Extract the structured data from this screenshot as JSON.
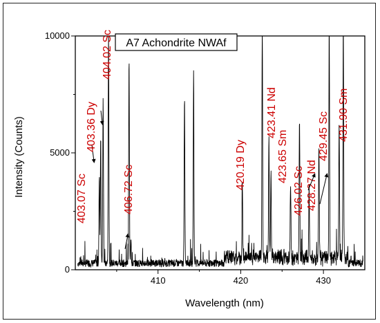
{
  "chart_data": {
    "type": "line",
    "title": "A7 Achondrite NWAf",
    "xlabel": "Wavelength (nm)",
    "ylabel": "Intensity (Counts)",
    "xlim": [
      400,
      435
    ],
    "ylim": [
      0,
      10000
    ],
    "xticks": [
      410,
      420,
      430
    ],
    "yticks": [
      0,
      5000,
      10000
    ],
    "colors": {
      "spectrum": "#000000",
      "annotation": "#cc0000"
    },
    "peaks": [
      {
        "x": 402.9,
        "y": 3700
      },
      {
        "x": 403.07,
        "y": 5400
      },
      {
        "x": 403.36,
        "y": 7000
      },
      {
        "x": 404.02,
        "y": 10000
      },
      {
        "x": 406.5,
        "y": 8700
      },
      {
        "x": 406.72,
        "y": 1100
      },
      {
        "x": 413.2,
        "y": 7000
      },
      {
        "x": 414.3,
        "y": 8200
      },
      {
        "x": 420.19,
        "y": 3300
      },
      {
        "x": 422.6,
        "y": 10000
      },
      {
        "x": 423.41,
        "y": 5300
      },
      {
        "x": 423.65,
        "y": 3600
      },
      {
        "x": 426.02,
        "y": 3200
      },
      {
        "x": 427.1,
        "y": 6000
      },
      {
        "x": 428.27,
        "y": 3000
      },
      {
        "x": 429.45,
        "y": 4500
      },
      {
        "x": 430.7,
        "y": 10000
      },
      {
        "x": 431.9,
        "y": 5600
      },
      {
        "x": 432.4,
        "y": 10000
      }
    ],
    "annotations": [
      {
        "text": "403.07 Sc",
        "x": 403.07,
        "y": 5100
      },
      {
        "text": "403.36 Dy",
        "x": 403.36,
        "y": 7000
      },
      {
        "text": "404.02 Sc",
        "x": 404.02,
        "y": 10000
      },
      {
        "text": "406.72 Sc",
        "x": 406.72,
        "y": 1000
      },
      {
        "text": "420.19 Dy",
        "x": 420.19,
        "y": 3300
      },
      {
        "text": "423.41 Nd",
        "x": 423.41,
        "y": 5300
      },
      {
        "text": "423.65 Sm",
        "x": 423.65,
        "y": 3600
      },
      {
        "text": "426.02 Sc",
        "x": 426.02,
        "y": 3200
      },
      {
        "text": "428.27 Nd",
        "x": 428.27,
        "y": 3000
      },
      {
        "text": "429.45 Sc",
        "x": 429.45,
        "y": 4500
      },
      {
        "text": "431.90 Sm",
        "x": 431.9,
        "y": 5600
      }
    ]
  }
}
